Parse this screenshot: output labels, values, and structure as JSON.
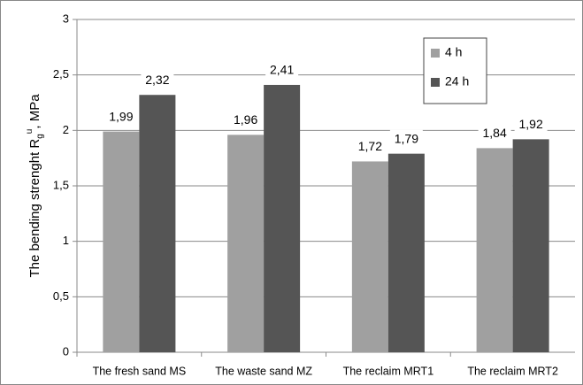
{
  "chart_data": {
    "type": "bar",
    "y_label": {
      "text": "The bending strenght R",
      "sub": "g",
      "sup": "u",
      "tail": ", MPa"
    },
    "categories": [
      "The fresh sand MS",
      "The waste sand MZ",
      "The reclaim MRT1",
      "The reclaim MRT2"
    ],
    "series": [
      {
        "name": "4 h",
        "color": "#a0a0a0",
        "values": [
          1.99,
          1.96,
          1.72,
          1.84
        ],
        "value_labels": [
          "1,99",
          "1,96",
          "1,72",
          "1,84"
        ]
      },
      {
        "name": "24 h",
        "color": "#555555",
        "values": [
          2.32,
          2.41,
          1.79,
          1.92
        ],
        "value_labels": [
          "2,32",
          "2,41",
          "1,79",
          "1,92"
        ]
      }
    ],
    "ylim": [
      0,
      3
    ],
    "yticks": [
      0,
      {
        "value": 0.5,
        "label": "0,5"
      },
      1,
      {
        "value": 1.5,
        "label": "1,5"
      },
      2,
      {
        "value": 2.5,
        "label": "2,5"
      },
      3
    ],
    "grid": true,
    "legend": "upper right"
  }
}
